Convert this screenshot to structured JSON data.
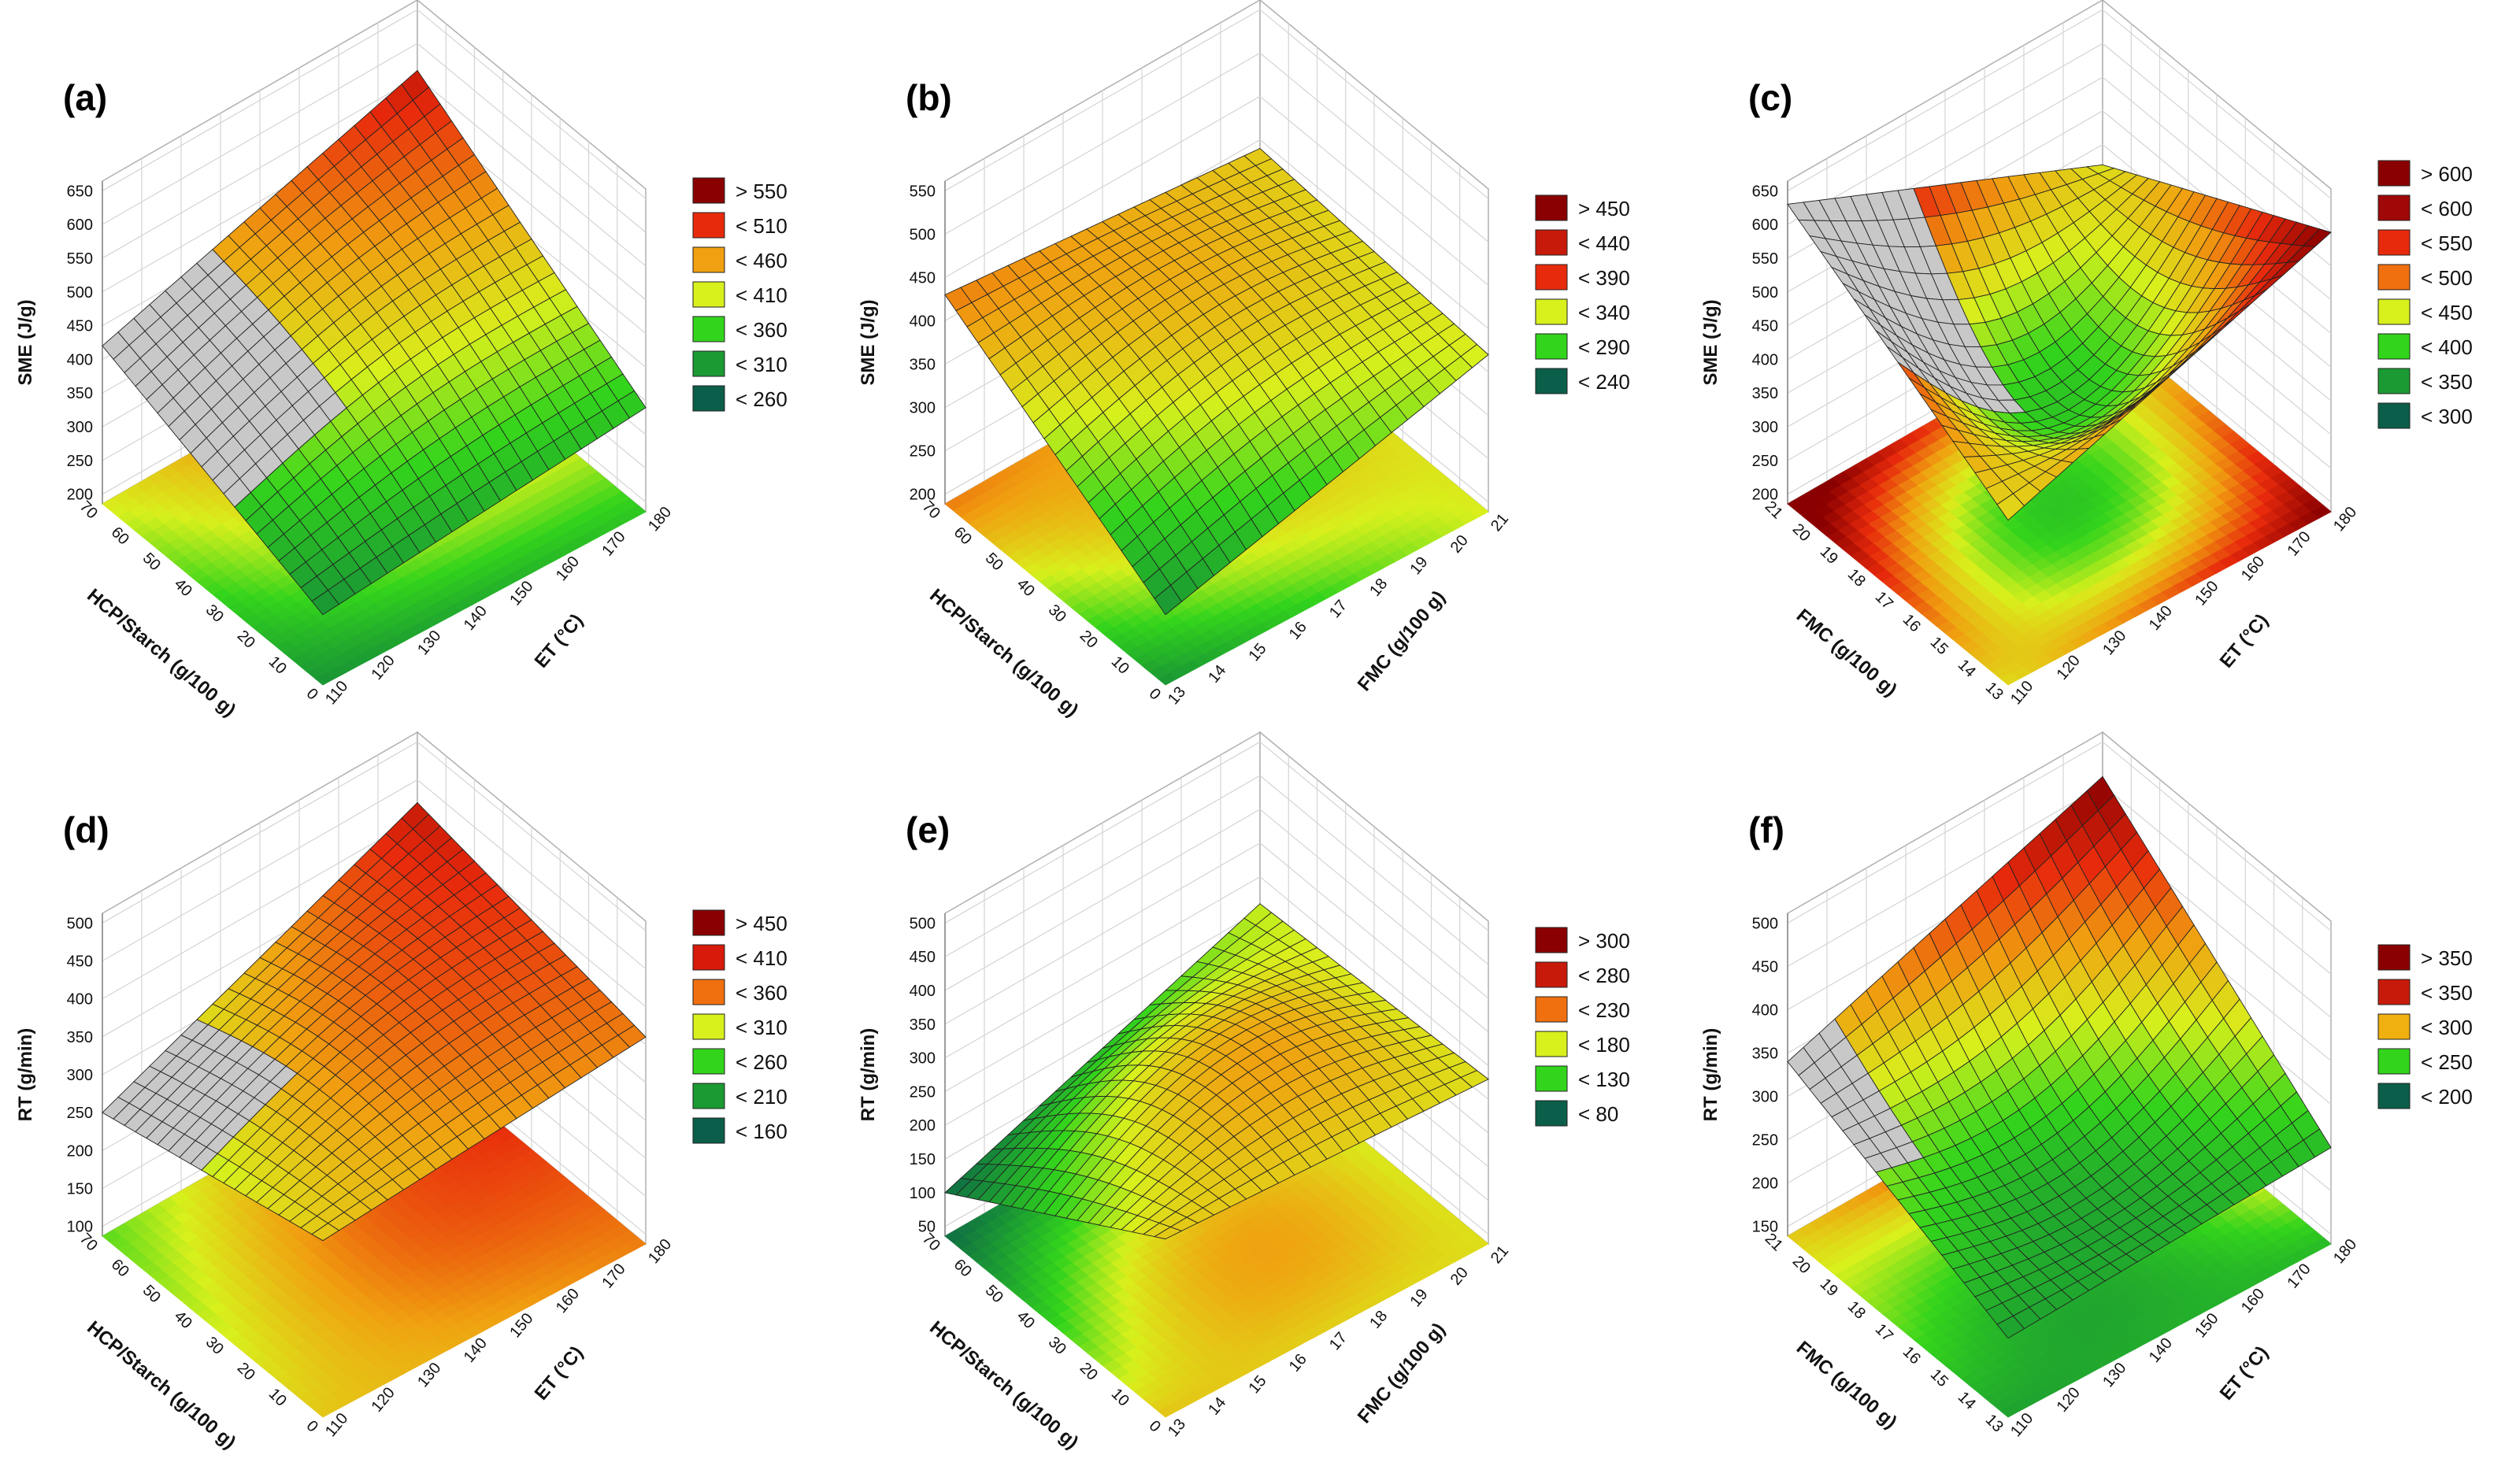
{
  "colors": {
    "c1": "#0b5e4a",
    "c2": "#1b9a33",
    "c3": "#33d41c",
    "c4": "#d8f01c",
    "c5": "#f0a010",
    "c6": "#e82a0c",
    "c7": "#8a0000",
    "gray": "#c8c8c8"
  },
  "chart_data": [
    {
      "type": "surface",
      "panel": "(a)",
      "title": "",
      "zlabel": "SME (J/g)",
      "zticks": [
        "650",
        "600",
        "550",
        "500",
        "450",
        "400",
        "350",
        "300",
        "250",
        "200"
      ],
      "xlabel": "HCP/Starch (g/100 g)",
      "xticks": [
        "70",
        "60",
        "50",
        "40",
        "30",
        "20",
        "10",
        "0"
      ],
      "ylabel": "ET (°C)",
      "yticks": [
        "110",
        "120",
        "130",
        "140",
        "150",
        "160",
        "170",
        "180"
      ],
      "xrange": [
        0,
        70
      ],
      "yrange": [
        110,
        180
      ],
      "zrange": [
        200,
        650
      ],
      "legend": [
        "> 550",
        "< 510",
        "< 460",
        "< 410",
        "< 360",
        "< 310",
        "< 260"
      ],
      "legend_colors": [
        "#8a0000",
        "#e82a0c",
        "#f0a010",
        "#d8f01c",
        "#33d41c",
        "#1b9a33",
        "#0b5e4a"
      ],
      "surface_corners": {
        "front": 290,
        "left": 420,
        "back": 560,
        "right": 340
      }
    },
    {
      "type": "surface",
      "panel": "(b)",
      "zlabel": "SME (J/g)",
      "zticks": [
        "550",
        "500",
        "450",
        "400",
        "350",
        "300",
        "250",
        "200"
      ],
      "xlabel": "HCP/Starch (g/100 g)",
      "xticks": [
        "70",
        "60",
        "50",
        "40",
        "30",
        "20",
        "10",
        "0"
      ],
      "ylabel": "FMC (g/100 g)",
      "yticks": [
        "13",
        "14",
        "15",
        "16",
        "17",
        "18",
        "19",
        "20",
        "21"
      ],
      "xrange": [
        0,
        70
      ],
      "yrange": [
        13,
        21
      ],
      "zrange": [
        200,
        550
      ],
      "legend": [
        "> 450",
        "< 440",
        "< 390",
        "< 340",
        "< 290",
        "< 240"
      ],
      "legend_colors": [
        "#8a0000",
        "#c81a0a",
        "#e82a0c",
        "#d8f01c",
        "#33d41c",
        "#0b5e4a"
      ],
      "surface_corners": {
        "front": 270,
        "left": 430,
        "back": 390,
        "right": 370
      }
    },
    {
      "type": "surface",
      "panel": "(c)",
      "zlabel": "SME (J/g)",
      "zticks": [
        "650",
        "600",
        "550",
        "500",
        "450",
        "400",
        "350",
        "300",
        "250",
        "200"
      ],
      "xlabel": "FMC (g/100 g)",
      "xticks": [
        "21",
        "20",
        "19",
        "18",
        "17",
        "16",
        "15",
        "14",
        "13"
      ],
      "ylabel": "ET (°C)",
      "yticks": [
        "110",
        "120",
        "130",
        "140",
        "150",
        "160",
        "170",
        "180"
      ],
      "xrange": [
        13,
        21
      ],
      "yrange": [
        110,
        180
      ],
      "zrange": [
        200,
        650
      ],
      "legend": [
        "> 600",
        "< 600",
        "< 550",
        "< 500",
        "< 450",
        "< 400",
        "< 350",
        "< 300"
      ],
      "legend_colors": [
        "#8a0000",
        "#a00808",
        "#e82a0c",
        "#f07010",
        "#d8f01c",
        "#33d41c",
        "#1b9a33",
        "#0b5e4a"
      ],
      "surface_corners": {
        "front": 430,
        "left": 630,
        "back": 420,
        "right": 600
      }
    },
    {
      "type": "surface",
      "panel": "(d)",
      "zlabel": "RT (g/min)",
      "zticks": [
        "500",
        "450",
        "400",
        "350",
        "300",
        "250",
        "200",
        "150",
        "100"
      ],
      "xlabel": "HCP/Starch (g/100 g)",
      "xticks": [
        "70",
        "60",
        "50",
        "40",
        "30",
        "20",
        "10",
        "0"
      ],
      "ylabel": "ET (°C)",
      "yticks": [
        "110",
        "120",
        "130",
        "140",
        "150",
        "160",
        "170",
        "180"
      ],
      "xrange": [
        0,
        70
      ],
      "yrange": [
        110,
        180
      ],
      "zrange": [
        100,
        500
      ],
      "legend": [
        "> 450",
        "< 410",
        "< 360",
        "< 310",
        "< 260",
        "< 210",
        "< 160"
      ],
      "legend_colors": [
        "#8a0000",
        "#d81a0a",
        "#f07010",
        "#d8f01c",
        "#33d41c",
        "#1b9a33",
        "#0b5e4a"
      ],
      "surface_corners": {
        "front": 320,
        "left": 250,
        "back": 420,
        "right": 360
      }
    },
    {
      "type": "surface",
      "panel": "(e)",
      "zlabel": "RT (g/min)",
      "zticks": [
        "500",
        "450",
        "400",
        "350",
        "300",
        "250",
        "200",
        "150",
        "100",
        "50"
      ],
      "xlabel": "HCP/Starch (g/100 g)",
      "xticks": [
        "70",
        "60",
        "50",
        "40",
        "30",
        "20",
        "10",
        "0"
      ],
      "ylabel": "FMC (g/100 g)",
      "yticks": [
        "13",
        "14",
        "15",
        "16",
        "17",
        "18",
        "19",
        "20",
        "21"
      ],
      "xrange": [
        0,
        70
      ],
      "yrange": [
        13,
        21
      ],
      "zrange": [
        50,
        500
      ],
      "legend": [
        "> 300",
        "< 280",
        "< 230",
        "< 180",
        "< 130",
        "< 80"
      ],
      "legend_colors": [
        "#8a0000",
        "#c81a0a",
        "#f07010",
        "#d8f01c",
        "#33d41c",
        "#0b5e4a"
      ],
      "surface_corners": {
        "front": 300,
        "left": 100,
        "back": 260,
        "right": 280
      }
    },
    {
      "type": "surface",
      "panel": "(f)",
      "zlabel": "RT (g/min)",
      "zticks": [
        "500",
        "450",
        "400",
        "350",
        "300",
        "250",
        "200",
        "150"
      ],
      "xlabel": "FMC (g/100 g)",
      "xticks": [
        "21",
        "20",
        "19",
        "18",
        "17",
        "16",
        "15",
        "14",
        "13"
      ],
      "ylabel": "ET (°C)",
      "yticks": [
        "110",
        "120",
        "130",
        "140",
        "150",
        "160",
        "170",
        "180"
      ],
      "xrange": [
        13,
        21
      ],
      "yrange": [
        110,
        180
      ],
      "zrange": [
        150,
        500
      ],
      "legend": [
        "> 350",
        "< 350",
        "< 300",
        "< 250",
        "< 200"
      ],
      "legend_colors": [
        "#8a0000",
        "#c81a0a",
        "#f0b010",
        "#33d41c",
        "#0b5e4a"
      ],
      "surface_corners": {
        "front": 230,
        "left": 340,
        "back": 460,
        "right": 250
      }
    }
  ]
}
